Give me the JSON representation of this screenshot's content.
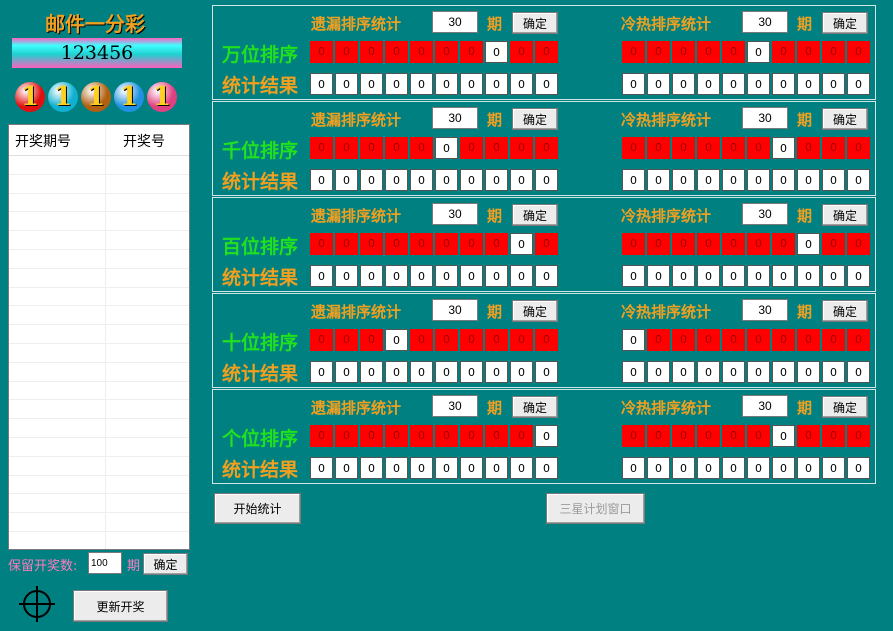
{
  "app_title": "邮件一分彩",
  "latest_number": "123456",
  "balls": [
    {
      "digit": "1",
      "color": "#e01010"
    },
    {
      "digit": "1",
      "color": "#10b0d0"
    },
    {
      "digit": "1",
      "color": "#b06010"
    },
    {
      "digit": "1",
      "color": "#2090e0"
    },
    {
      "digit": "1",
      "color": "#e04080"
    }
  ],
  "history": {
    "col_period": "开奖期号",
    "col_number": "开奖号"
  },
  "keep": {
    "label": "保留开奖数:",
    "value": "100",
    "unit": "期",
    "confirm": "确定"
  },
  "update_button": "更新开奖",
  "start_button": "开始统计",
  "plan_button": "三星计划窗口",
  "labels": {
    "miss_title": "遗漏排序统计",
    "hot_title": "冷热排序统计",
    "period_unit": "期",
    "confirm": "确定",
    "result_label": "统计结果"
  },
  "sections": [
    {
      "name": "万位排序",
      "name_color": "#20e020",
      "miss_periods": "30",
      "hot_periods": "30",
      "miss_white": 7,
      "hot_white": 5,
      "miss_cells": [
        "0",
        "0",
        "0",
        "0",
        "0",
        "0",
        "0",
        "0",
        "0",
        "0"
      ],
      "hot_cells": [
        "0",
        "0",
        "0",
        "0",
        "0",
        "0",
        "0",
        "0",
        "0",
        "0"
      ],
      "miss_result": [
        "0",
        "0",
        "0",
        "0",
        "0",
        "0",
        "0",
        "0",
        "0",
        "0"
      ],
      "hot_result": [
        "0",
        "0",
        "0",
        "0",
        "0",
        "0",
        "0",
        "0",
        "0",
        "0"
      ]
    },
    {
      "name": "千位排序",
      "name_color": "#20e020",
      "miss_periods": "30",
      "hot_periods": "30",
      "miss_white": 5,
      "hot_white": 6,
      "miss_cells": [
        "0",
        "0",
        "0",
        "0",
        "0",
        "0",
        "0",
        "0",
        "0",
        "0"
      ],
      "hot_cells": [
        "0",
        "0",
        "0",
        "0",
        "0",
        "0",
        "0",
        "0",
        "0",
        "0"
      ],
      "miss_result": [
        "0",
        "0",
        "0",
        "0",
        "0",
        "0",
        "0",
        "0",
        "0",
        "0"
      ],
      "hot_result": [
        "0",
        "0",
        "0",
        "0",
        "0",
        "0",
        "0",
        "0",
        "0",
        "0"
      ]
    },
    {
      "name": "百位排序",
      "name_color": "#20e020",
      "miss_periods": "30",
      "hot_periods": "30",
      "miss_white": 8,
      "hot_white": 7,
      "miss_cells": [
        "0",
        "0",
        "0",
        "0",
        "0",
        "0",
        "0",
        "0",
        "0",
        "0"
      ],
      "hot_cells": [
        "0",
        "0",
        "0",
        "0",
        "0",
        "0",
        "0",
        "0",
        "0",
        "0"
      ],
      "miss_result": [
        "0",
        "0",
        "0",
        "0",
        "0",
        "0",
        "0",
        "0",
        "0",
        "0"
      ],
      "hot_result": [
        "0",
        "0",
        "0",
        "0",
        "0",
        "0",
        "0",
        "0",
        "0",
        "0"
      ]
    },
    {
      "name": "十位排序",
      "name_color": "#20e020",
      "miss_periods": "30",
      "hot_periods": "30",
      "miss_white": 3,
      "hot_white": 0,
      "miss_cells": [
        "0",
        "0",
        "0",
        "0",
        "0",
        "0",
        "0",
        "0",
        "0",
        "0"
      ],
      "hot_cells": [
        "0",
        "0",
        "0",
        "0",
        "0",
        "0",
        "0",
        "0",
        "0",
        "0"
      ],
      "miss_result": [
        "0",
        "0",
        "0",
        "0",
        "0",
        "0",
        "0",
        "0",
        "0",
        "0"
      ],
      "hot_result": [
        "0",
        "0",
        "0",
        "0",
        "0",
        "0",
        "0",
        "0",
        "0",
        "0"
      ]
    },
    {
      "name": "个位排序",
      "name_color": "#20e020",
      "miss_periods": "30",
      "hot_periods": "30",
      "miss_white": 9,
      "hot_white": 6,
      "miss_cells": [
        "0",
        "0",
        "0",
        "0",
        "0",
        "0",
        "0",
        "0",
        "0",
        "0"
      ],
      "hot_cells": [
        "0",
        "0",
        "0",
        "0",
        "0",
        "0",
        "0",
        "0",
        "0",
        "0"
      ],
      "miss_result": [
        "0",
        "0",
        "0",
        "0",
        "0",
        "0",
        "0",
        "0",
        "0",
        "0"
      ],
      "hot_result": [
        "0",
        "0",
        "0",
        "0",
        "0",
        "0",
        "0",
        "0",
        "0",
        "0"
      ]
    }
  ]
}
